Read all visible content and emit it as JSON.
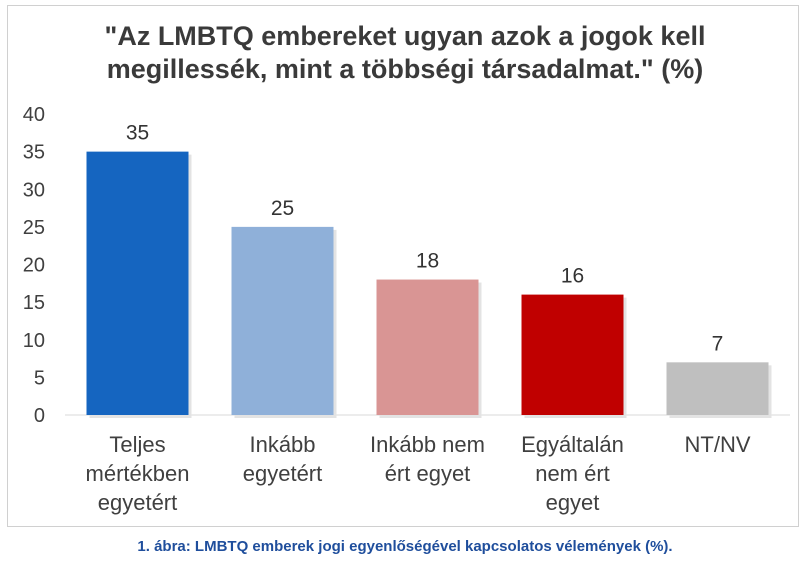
{
  "title_line1": "\"Az LMBTQ embereket ugyan azok a jogok kell",
  "title_line2": "megillessék, mint a többségi társadalmat.\" (%)",
  "caption": "1. ábra: LMBTQ emberek jogi egyenlőségével kapcsolatos vélemények (%).",
  "chart_data": {
    "type": "bar",
    "title": "\"Az LMBTQ embereket ugyan azok a jogok kell megillessék, mint a többségi társadalmat.\" (%)",
    "xlabel": "",
    "ylabel": "",
    "ylim": [
      0,
      40
    ],
    "yticks": [
      0,
      5,
      10,
      15,
      20,
      25,
      30,
      35,
      40
    ],
    "grid": false,
    "categories": [
      [
        "Teljes",
        "mértékben",
        "egyetért"
      ],
      [
        "Inkább",
        "egyetért"
      ],
      [
        "Inkább nem",
        "ért egyet"
      ],
      [
        "Egyáltalán",
        "nem ért",
        "egyet"
      ],
      [
        "NT/NV"
      ]
    ],
    "values": [
      35,
      25,
      18,
      16,
      7
    ],
    "colors": [
      "#1565c0",
      "#8fb0d9",
      "#d99594",
      "#c00000",
      "#bfbfbf"
    ]
  }
}
